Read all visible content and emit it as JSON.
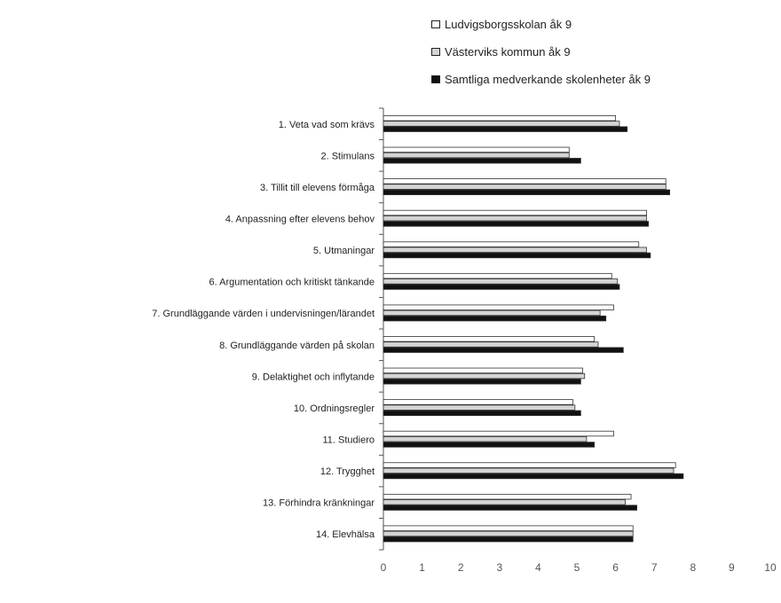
{
  "chart_data": {
    "type": "bar",
    "orientation": "horizontal",
    "title": "",
    "xlabel": "",
    "ylabel": "",
    "xlim": [
      0,
      10
    ],
    "x_ticks": [
      "0",
      "1",
      "2",
      "3",
      "4",
      "5",
      "6",
      "7",
      "8",
      "9",
      "10"
    ],
    "grid": false,
    "legend_position": "top-right",
    "categories": [
      "1. Veta vad som krävs",
      "2. Stimulans",
      "3. Tillit till elevens förmåga",
      "4. Anpassning efter elevens behov",
      "5. Utmaningar",
      "6. Argumentation och kritiskt tänkande",
      "7. Grundläggande värden i undervisningen/lärandet",
      "8. Grundläggande värden på skolan",
      "9. Delaktighet och inflytande",
      "10. Ordningsregler",
      "11. Studiero",
      "12. Trygghet",
      "13. Förhindra kränkningar",
      "14. Elevhälsa"
    ],
    "series": [
      {
        "name": "Ludvigsborgsskolan åk 9",
        "color": "#ffffff",
        "values": [
          6.0,
          4.8,
          7.3,
          6.8,
          6.6,
          5.9,
          5.95,
          5.45,
          5.15,
          4.9,
          5.95,
          7.55,
          6.4,
          6.45
        ]
      },
      {
        "name": "Västerviks kommun åk 9",
        "color": "#d4d4d4",
        "values": [
          6.1,
          4.8,
          7.3,
          6.8,
          6.8,
          6.05,
          5.6,
          5.55,
          5.2,
          4.95,
          5.25,
          7.5,
          6.25,
          6.45
        ]
      },
      {
        "name": "Samtliga medverkande skolenheter åk 9",
        "color": "#111111",
        "values": [
          6.3,
          5.1,
          7.4,
          6.85,
          6.9,
          6.1,
          5.75,
          6.2,
          5.1,
          5.1,
          5.45,
          7.75,
          6.55,
          6.45
        ]
      }
    ]
  }
}
